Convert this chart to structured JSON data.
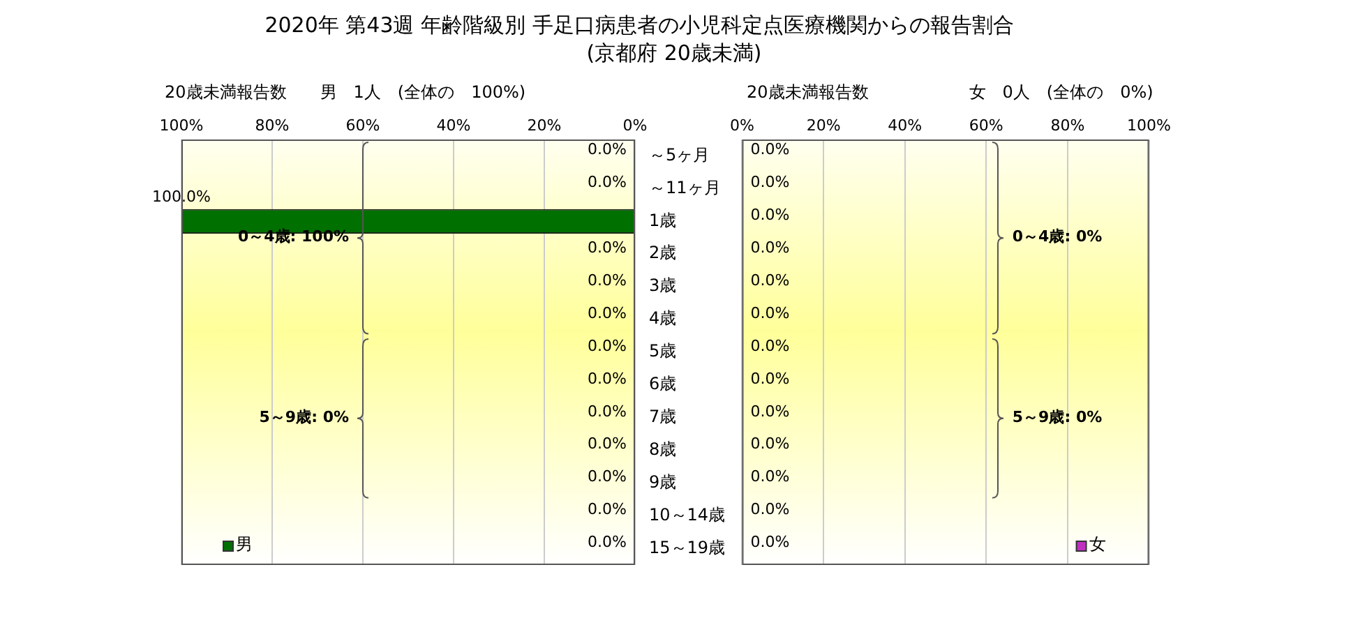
{
  "chart_data": [
    {
      "type": "bar",
      "orientation": "horizontal",
      "title": "2020年 第43週 年齢階級別 手足口病患者の小児科定点医療機関からの報告割合",
      "subtitle": "(京都府 20歳未満)",
      "annotations": [
        "20歳未満報告数　　男　1人　(全体の　100%)",
        "0～4歳: 100%",
        "5～9歳: 0%"
      ],
      "categories": [
        "～5ヶ月",
        "～11ヶ月",
        "1歳",
        "2歳",
        "3歳",
        "4歳",
        "5歳",
        "6歳",
        "7歳",
        "8歳",
        "9歳",
        "10～14歳",
        "15～19歳"
      ],
      "series": [
        {
          "name": "男",
          "color": "#007000",
          "values": [
            0,
            0,
            100,
            0,
            0,
            0,
            0,
            0,
            0,
            0,
            0,
            0,
            0
          ],
          "value_labels": [
            "0.0%",
            "0.0%",
            "100.0%",
            "0.0%",
            "0.0%",
            "0.0%",
            "0.0%",
            "0.0%",
            "0.0%",
            "0.0%",
            "0.0%",
            "0.0%",
            "0.0%"
          ]
        }
      ],
      "xlim": [
        100,
        0
      ],
      "xticks": [
        {
          "value": 100,
          "label": "100%"
        },
        {
          "value": 80,
          "label": "80%"
        },
        {
          "value": 60,
          "label": "60%"
        },
        {
          "value": 40,
          "label": "40%"
        },
        {
          "value": 20,
          "label": "20%"
        },
        {
          "value": 0,
          "label": "0%"
        }
      ],
      "grid": "x",
      "legend": "bottom left"
    },
    {
      "type": "bar",
      "orientation": "horizontal",
      "annotations": [
        "20歳未満報告数　　　　　　女　0人　(全体の　0%)",
        "0～4歳: 0%",
        "5～9歳: 0%"
      ],
      "categories": [
        null,
        null,
        null,
        null,
        null,
        null,
        null,
        null,
        null,
        null,
        null,
        null,
        null
      ],
      "series": [
        {
          "name": "女",
          "color": "#c030c0",
          "values": [
            0,
            0,
            0,
            0,
            0,
            0,
            0,
            0,
            0,
            0,
            0,
            0,
            0
          ],
          "value_labels": [
            "0.0%",
            "0.0%",
            "0.0%",
            "0.0%",
            "0.0%",
            "0.0%",
            "0.0%",
            "0.0%",
            "0.0%",
            "0.0%",
            "0.0%",
            "0.0%",
            "0.0%"
          ]
        }
      ],
      "xlim": [
        0,
        100
      ],
      "xticks": [
        {
          "value": 0,
          "label": "0%"
        },
        {
          "value": 20,
          "label": "20%"
        },
        {
          "value": 40,
          "label": "40%"
        },
        {
          "value": 60,
          "label": "60%"
        },
        {
          "value": 80,
          "label": "80%"
        },
        {
          "value": 100,
          "label": "100%"
        }
      ],
      "grid": "x",
      "legend": "bottom right",
      "tick_labels": "x"
    }
  ]
}
